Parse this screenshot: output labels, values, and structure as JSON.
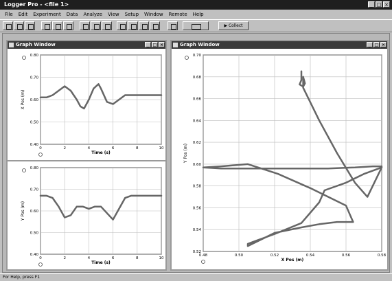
{
  "app": {
    "title": "Logger Pro - <file 1>",
    "window_buttons": [
      "_",
      "□",
      "×"
    ]
  },
  "menu": [
    "File",
    "Edit",
    "Experiment",
    "Data",
    "Analyze",
    "View",
    "Setup",
    "Window",
    "Remote",
    "Help"
  ],
  "toolbar": {
    "collect_label": "Collect"
  },
  "graph_window": {
    "title": "Graph Window"
  },
  "xy_window": {
    "title": "Graph Window"
  },
  "statusbar": {
    "text": "For Help, press F1"
  },
  "icons": [
    "open-icon",
    "save-icon",
    "print-icon",
    "zoom-icon",
    "autoscale-icon",
    "stats-icon",
    "tangent-icon",
    "collect-icon"
  ],
  "chart_data": [
    {
      "type": "line",
      "xlabel": "Time (s)",
      "ylabel": "X Pos (m)",
      "xlim": [
        0,
        10
      ],
      "ylim": [
        0.4,
        0.8
      ],
      "xticks": [
        "0",
        "2",
        "4",
        "6",
        "8",
        "10"
      ],
      "yticks": [
        "0.40",
        "0.50",
        "0.60",
        "0.70",
        "0.80"
      ],
      "x": [
        0,
        0.5,
        1,
        1.5,
        2,
        2.5,
        3,
        3.3,
        3.6,
        4,
        4.4,
        4.8,
        5,
        5.5,
        6,
        6.5,
        7,
        7.5,
        8,
        10
      ],
      "y": [
        0.61,
        0.61,
        0.62,
        0.64,
        0.66,
        0.64,
        0.6,
        0.57,
        0.56,
        0.6,
        0.65,
        0.67,
        0.65,
        0.59,
        0.58,
        0.6,
        0.62,
        0.62,
        0.62,
        0.62
      ]
    },
    {
      "type": "line",
      "xlabel": "Time (s)",
      "ylabel": "Y Pos (m)",
      "xlim": [
        0,
        10
      ],
      "ylim": [
        0.4,
        0.8
      ],
      "xticks": [
        "0",
        "2",
        "4",
        "6",
        "8",
        "10"
      ],
      "yticks": [
        "0.40",
        "0.50",
        "0.60",
        "0.70",
        "0.80"
      ],
      "x": [
        0,
        0.5,
        1,
        1.5,
        2,
        2.5,
        3,
        3.5,
        4,
        4.5,
        5,
        5.5,
        6,
        6.5,
        7,
        7.5,
        8,
        10
      ],
      "y": [
        0.67,
        0.67,
        0.66,
        0.62,
        0.57,
        0.58,
        0.62,
        0.62,
        0.61,
        0.62,
        0.62,
        0.59,
        0.56,
        0.61,
        0.66,
        0.67,
        0.67,
        0.67
      ]
    },
    {
      "type": "line",
      "xlabel": "X Pos (m)",
      "ylabel": "Y Pos (m)",
      "xlim": [
        0.48,
        0.58
      ],
      "ylim": [
        0.52,
        0.7
      ],
      "xticks": [
        "0.48",
        "0.50",
        "0.52",
        "0.54",
        "0.56",
        "0.58"
      ],
      "yticks": [
        "0.52",
        "0.54",
        "0.56",
        "0.58",
        "0.60",
        "0.62",
        "0.64",
        "0.66",
        "0.68",
        "0.70"
      ],
      "x": [
        0.535,
        0.535,
        0.534,
        0.536,
        0.537,
        0.536,
        0.536,
        0.545,
        0.555,
        0.565,
        0.572,
        0.58,
        0.57,
        0.56,
        0.548,
        0.545,
        0.535,
        0.52,
        0.51,
        0.505,
        0.505,
        0.52,
        0.535,
        0.545,
        0.555,
        0.564,
        0.56,
        0.54,
        0.522,
        0.505,
        0.49,
        0.48,
        0.49,
        0.51,
        0.53,
        0.55,
        0.565,
        0.575,
        0.58
      ],
      "y": [
        0.685,
        0.677,
        0.673,
        0.671,
        0.674,
        0.68,
        0.67,
        0.64,
        0.61,
        0.583,
        0.57,
        0.597,
        0.591,
        0.583,
        0.576,
        0.565,
        0.546,
        0.536,
        0.53,
        0.527,
        0.525,
        0.537,
        0.542,
        0.545,
        0.547,
        0.547,
        0.562,
        0.578,
        0.591,
        0.6,
        0.598,
        0.597,
        0.596,
        0.596,
        0.596,
        0.596,
        0.597,
        0.598,
        0.598
      ]
    }
  ]
}
